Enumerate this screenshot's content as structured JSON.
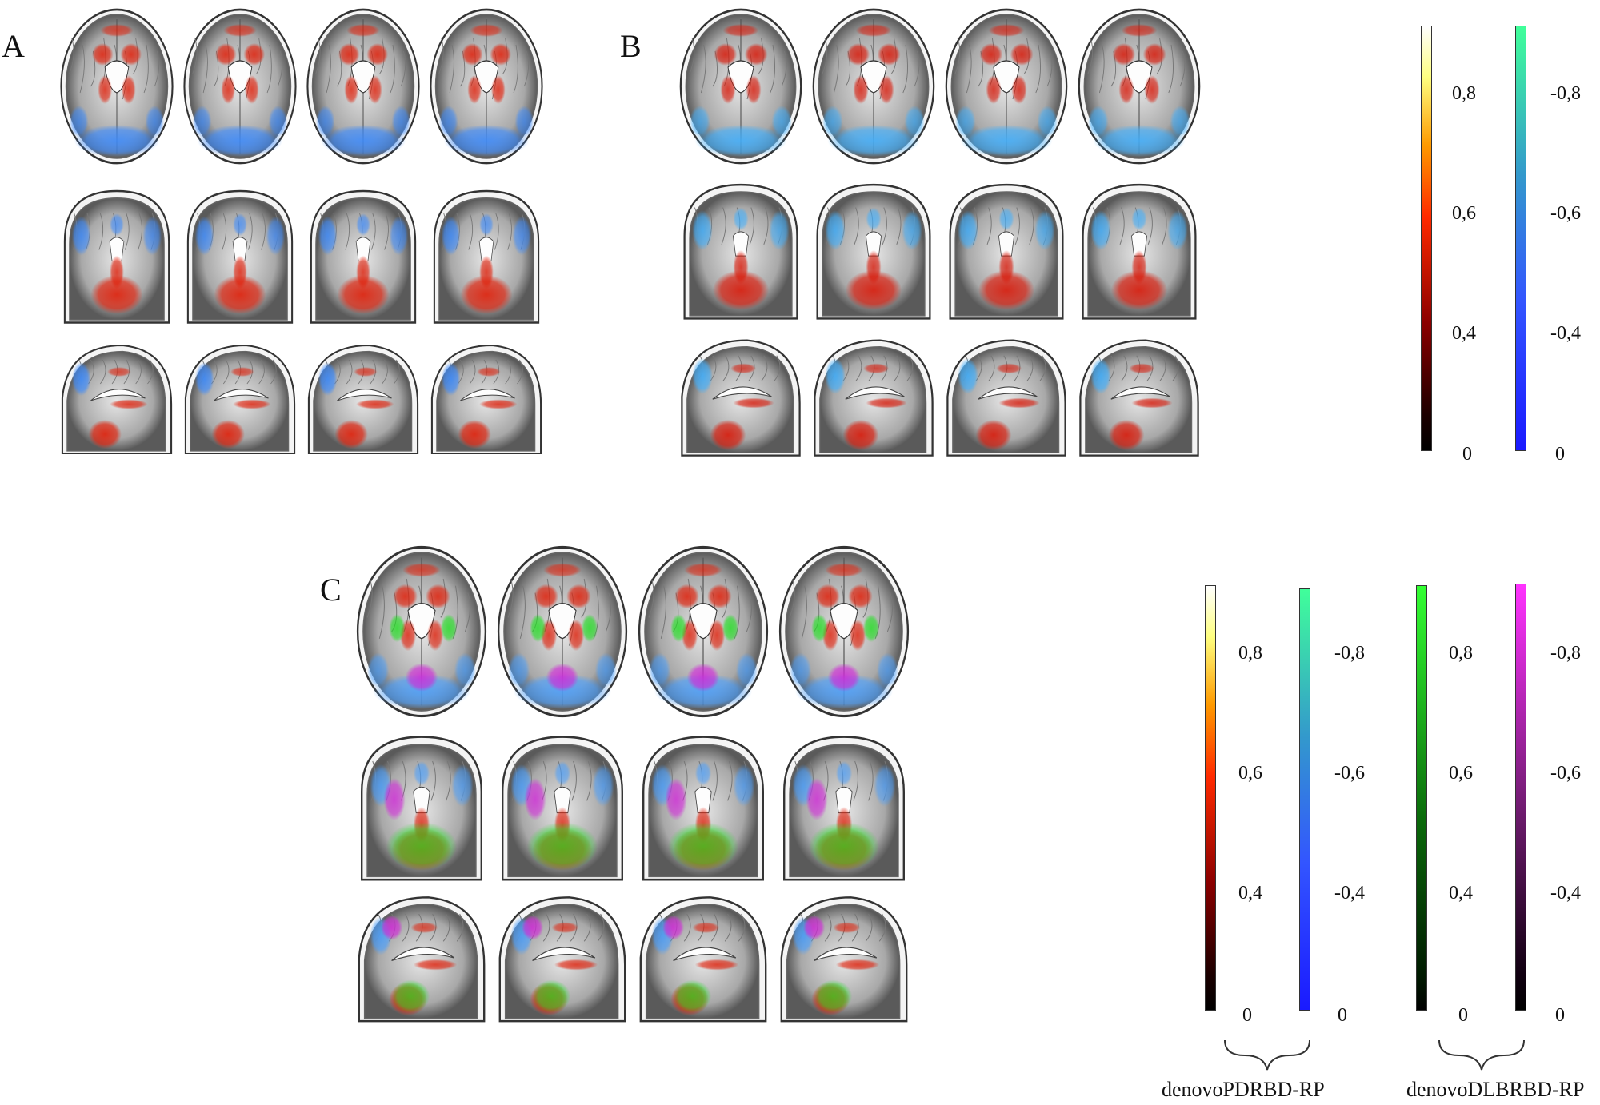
{
  "panels": [
    {
      "id": "A",
      "label": "A"
    },
    {
      "id": "B",
      "label": "B"
    },
    {
      "id": "C",
      "label": "C"
    }
  ],
  "colorbars_AB": {
    "positive": {
      "gradient": "hot",
      "ticks": [
        "0,8",
        "0,6",
        "0,4",
        "0"
      ]
    },
    "negative": {
      "gradient": "winter",
      "ticks": [
        "-0,8",
        "-0,6",
        "-0,4",
        "0"
      ]
    }
  },
  "colorbars_C": {
    "group1": {
      "label": "denovoPDRBD-RP",
      "positive": {
        "gradient": "hot",
        "ticks": [
          "0,8",
          "0,6",
          "0,4",
          "0"
        ]
      },
      "negative": {
        "gradient": "winter",
        "ticks": [
          "-0,8",
          "-0,6",
          "-0,4",
          "0"
        ]
      }
    },
    "group2": {
      "label": "denovoDLBRBD-RP",
      "positive": {
        "gradient": "green",
        "ticks": [
          "0,8",
          "0,6",
          "0,4",
          "0"
        ]
      },
      "negative": {
        "gradient": "magenta",
        "ticks": [
          "-0,8",
          "-0,6",
          "-0,4",
          "0"
        ]
      }
    }
  },
  "colors": {
    "hot_low": "#1a0000",
    "hot_mid": "#ff2a00",
    "hot_high": "#ffff80",
    "winter_low": "#1a1aff",
    "winter_high": "#40ff9a",
    "green_low": "#001a00",
    "green_high": "#33ff33",
    "magenta_low": "#100010",
    "magenta_high": "#ff33ff"
  }
}
